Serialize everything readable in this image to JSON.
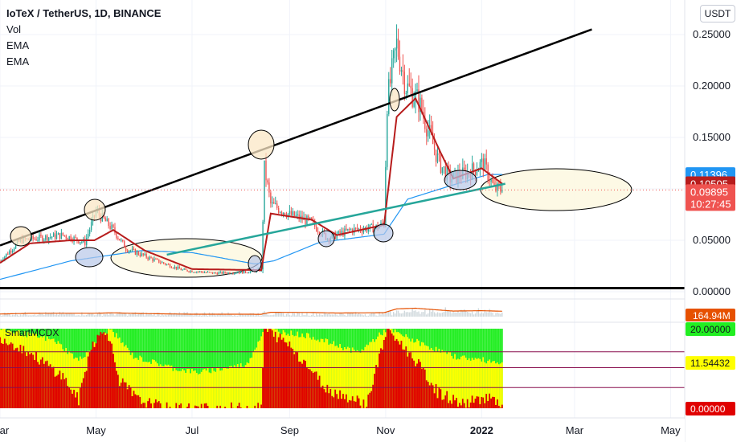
{
  "legend": {
    "title": "IoTeX / TetherUS, 1D, BINANCE",
    "vol": "Vol",
    "ema1": "EMA",
    "ema2": "EMA",
    "indicator": "SmartMCDX"
  },
  "currency": "USDT",
  "colors": {
    "candle_up": "#26a69a",
    "candle_down": "#ef5350",
    "ema_fast": "#b71c1c",
    "ema_slow": "#2196f3",
    "trendline_upper": "#000000",
    "trendline_lower": "#26a69a",
    "base_line": "#000000",
    "mcdx_red": "#e00000",
    "mcdx_yellow": "#ffff00",
    "mcdx_green": "#22ee22",
    "vol_ma": "#e65100",
    "ellipse_fill_tan": "#fbe7c6",
    "ellipse_fill_blue": "#b8c8e8",
    "ellipse_fill_cream": "#fdf8e2"
  },
  "chart_data": {
    "type": "candlestick",
    "symbol": "IoTeX / TetherUS",
    "timeframe": "1D",
    "exchange": "BINANCE",
    "y_axis": {
      "ticks": [
        "0.25000",
        "0.20000",
        "0.15000",
        "0.05000",
        "0.00000"
      ],
      "range": [
        -0.008,
        0.28
      ]
    },
    "x_axis": {
      "ticks": [
        "Mar",
        "May",
        "Jul",
        "Sep",
        "Nov",
        "2022",
        "Mar",
        "May"
      ],
      "range": [
        "2021-03-01",
        "2022-05-10"
      ]
    },
    "price_labels": [
      {
        "value": "0.11396",
        "color": "#2196f3"
      },
      {
        "value": "0.10505",
        "color": "#b71c1c"
      },
      {
        "value": "0.09895",
        "color": "#ef5350"
      },
      {
        "value": "10:27:45",
        "color": "#ef5350"
      }
    ],
    "current_price": 0.09895,
    "ema_fast_last": 0.10505,
    "ema_slow_last": 0.11396,
    "price_keypoints": [
      [
        "2021-03-01",
        0.03
      ],
      [
        "2021-03-14",
        0.05
      ],
      [
        "2021-03-26",
        0.052
      ],
      [
        "2021-04-10",
        0.055
      ],
      [
        "2021-04-24",
        0.048
      ],
      [
        "2021-05-01",
        0.078
      ],
      [
        "2021-05-12",
        0.06
      ],
      [
        "2021-05-20",
        0.042
      ],
      [
        "2021-06-05",
        0.032
      ],
      [
        "2021-06-25",
        0.021
      ],
      [
        "2021-07-15",
        0.018
      ],
      [
        "2021-08-02",
        0.019
      ],
      [
        "2021-08-14",
        0.021
      ],
      [
        "2021-08-16",
        0.12
      ],
      [
        "2021-08-20",
        0.085
      ],
      [
        "2021-09-01",
        0.075
      ],
      [
        "2021-09-14",
        0.068
      ],
      [
        "2021-09-25",
        0.052
      ],
      [
        "2021-10-10",
        0.06
      ],
      [
        "2021-10-25",
        0.062
      ],
      [
        "2021-10-31",
        0.066
      ],
      [
        "2021-11-02",
        0.185
      ],
      [
        "2021-11-08",
        0.24
      ],
      [
        "2021-11-14",
        0.2
      ],
      [
        "2021-11-22",
        0.185
      ],
      [
        "2021-12-05",
        0.125
      ],
      [
        "2021-12-12",
        0.11
      ],
      [
        "2021-12-24",
        0.116
      ],
      [
        "2022-01-02",
        0.125
      ],
      [
        "2022-01-09",
        0.1
      ],
      [
        "2022-01-14",
        0.09895
      ]
    ],
    "ema_fast_keypoints": [
      [
        "2021-03-01",
        0.028
      ],
      [
        "2021-03-20",
        0.047
      ],
      [
        "2021-04-15",
        0.05
      ],
      [
        "2021-04-30",
        0.05
      ],
      [
        "2021-05-12",
        0.06
      ],
      [
        "2021-06-01",
        0.04
      ],
      [
        "2021-07-01",
        0.022
      ],
      [
        "2021-08-14",
        0.021
      ],
      [
        "2021-08-20",
        0.076
      ],
      [
        "2021-09-15",
        0.07
      ],
      [
        "2021-10-01",
        0.055
      ],
      [
        "2021-10-31",
        0.065
      ],
      [
        "2021-11-08",
        0.17
      ],
      [
        "2021-11-20",
        0.188
      ],
      [
        "2021-12-06",
        0.135
      ],
      [
        "2021-12-14",
        0.11
      ],
      [
        "2022-01-01",
        0.12
      ],
      [
        "2022-01-14",
        0.10505
      ]
    ],
    "ema_slow_keypoints": [
      [
        "2021-03-01",
        0.012
      ],
      [
        "2021-04-15",
        0.03
      ],
      [
        "2021-05-30",
        0.04
      ],
      [
        "2021-07-01",
        0.038
      ],
      [
        "2021-08-10",
        0.027
      ],
      [
        "2021-08-22",
        0.03
      ],
      [
        "2021-09-20",
        0.048
      ],
      [
        "2021-10-31",
        0.056
      ],
      [
        "2021-11-15",
        0.09
      ],
      [
        "2021-12-10",
        0.102
      ],
      [
        "2022-01-05",
        0.114
      ],
      [
        "2022-01-14",
        0.11396
      ]
    ],
    "trendlines": [
      {
        "name": "upper",
        "from": [
          "2021-03-01",
          0.045
        ],
        "to": [
          "2022-03-12",
          0.255
        ]
      },
      {
        "name": "lower",
        "from": [
          "2021-06-15",
          0.036
        ],
        "to": [
          "2022-01-16",
          0.105
        ]
      },
      {
        "name": "base",
        "from": [
          "2021-03-01",
          0.0035
        ],
        "to": [
          "2022-05-10",
          0.0035
        ]
      }
    ],
    "volume_panel": {
      "label": "164.94M",
      "label_color": "#e65100"
    },
    "mcdx_panel": {
      "indicator": "SmartMCDX",
      "labels": [
        {
          "value": "20.00000",
          "color": "#22ee22"
        },
        {
          "value": "11.54432",
          "color": "#ffff00"
        },
        {
          "value": "0.00000",
          "color": "#e00000"
        }
      ],
      "red_keypoints": [
        [
          "2021-03-01",
          18
        ],
        [
          "2021-03-20",
          14
        ],
        [
          "2021-04-10",
          8
        ],
        [
          "2021-04-20",
          2
        ],
        [
          "2021-04-28",
          16
        ],
        [
          "2021-05-08",
          20
        ],
        [
          "2021-05-16",
          7
        ],
        [
          "2021-05-28",
          2
        ],
        [
          "2021-06-15",
          0
        ],
        [
          "2021-08-14",
          0
        ],
        [
          "2021-08-16",
          20
        ],
        [
          "2021-09-01",
          16
        ],
        [
          "2021-09-14",
          10
        ],
        [
          "2021-09-24",
          5
        ],
        [
          "2021-10-20",
          1
        ],
        [
          "2021-11-02",
          20
        ],
        [
          "2021-11-20",
          12
        ],
        [
          "2021-12-04",
          4
        ],
        [
          "2021-12-20",
          1
        ],
        [
          "2022-01-05",
          3
        ],
        [
          "2022-01-14",
          0
        ]
      ],
      "yellow_keypoints": [
        [
          "2021-03-01",
          20
        ],
        [
          "2021-04-05",
          17
        ],
        [
          "2021-04-20",
          12
        ],
        [
          "2021-05-10",
          20
        ],
        [
          "2021-05-25",
          13
        ],
        [
          "2021-06-20",
          10
        ],
        [
          "2021-07-05",
          9
        ],
        [
          "2021-08-05",
          11
        ],
        [
          "2021-08-16",
          20
        ],
        [
          "2021-09-15",
          18
        ],
        [
          "2021-10-15",
          14
        ],
        [
          "2021-11-02",
          20
        ],
        [
          "2021-11-25",
          16
        ],
        [
          "2021-12-15",
          13
        ],
        [
          "2022-01-14",
          11.5
        ]
      ]
    }
  }
}
